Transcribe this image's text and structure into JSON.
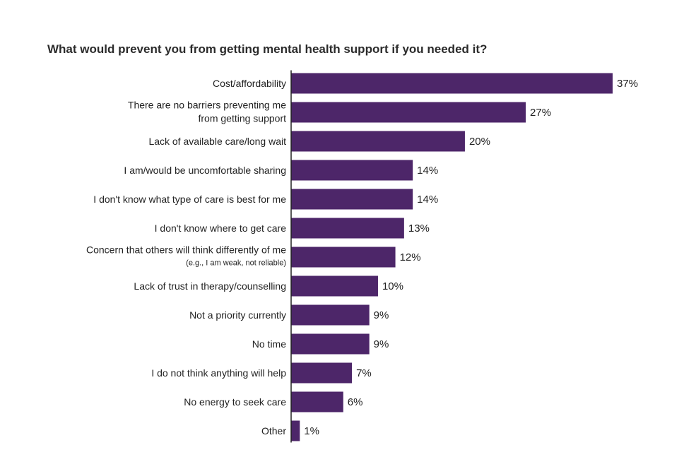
{
  "chart_data": {
    "type": "bar",
    "orientation": "horizontal",
    "title": "What would prevent you from getting mental health support if you needed it?",
    "categories": [
      [
        "Cost/affordability"
      ],
      [
        "There are no barriers preventing me",
        "from getting support"
      ],
      [
        "Lack of available care/long wait"
      ],
      [
        "I am/would be uncomfortable sharing"
      ],
      [
        "I don't know what type of care is best for me"
      ],
      [
        "I don't know where to get care"
      ],
      [
        "Concern that others will think differently of me"
      ],
      [
        "Lack of trust in therapy/counselling"
      ],
      [
        "Not a priority currently"
      ],
      [
        "No time"
      ],
      [
        "I do not think anything will help"
      ],
      [
        "No energy to seek care"
      ],
      [
        "Other"
      ]
    ],
    "category_notes": [
      "",
      "",
      "",
      "",
      "",
      "",
      "(e.g., I am weak, not reliable)",
      "",
      "",
      "",
      "",
      "",
      ""
    ],
    "values": [
      37,
      27,
      20,
      14,
      14,
      13,
      12,
      10,
      9,
      9,
      7,
      6,
      1
    ],
    "value_labels": [
      "37%",
      "27%",
      "20%",
      "14%",
      "14%",
      "13%",
      "12%",
      "10%",
      "9%",
      "9%",
      "7%",
      "6%",
      "1%"
    ],
    "xlim": [
      0,
      37
    ],
    "colors": {
      "bar": "#4d2669",
      "axis": "#222222"
    },
    "grid": false,
    "legend": "none"
  }
}
